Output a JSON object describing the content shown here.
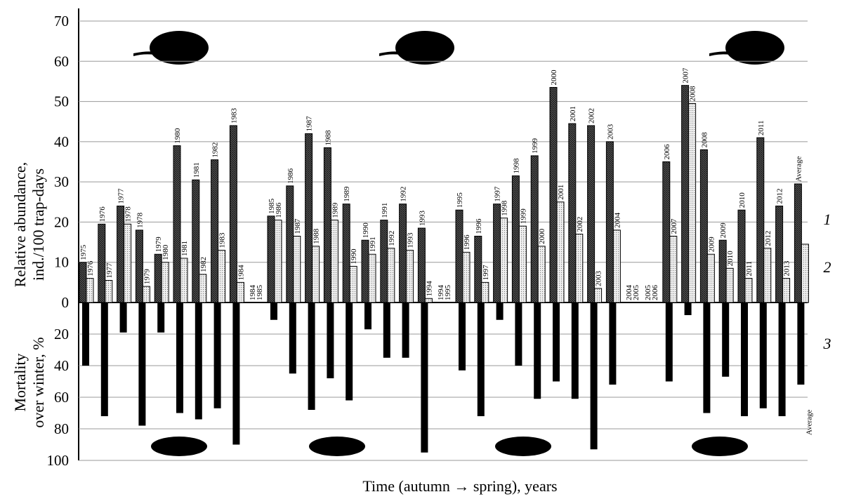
{
  "chart_data": {
    "type": "bar",
    "categories": [
      "1975",
      "1976",
      "1977",
      "1978",
      "1979",
      "1980",
      "1981",
      "1982",
      "1983",
      "1984",
      "1985",
      "1986",
      "1987",
      "1988",
      "1989",
      "1990",
      "1991",
      "1992",
      "1993",
      "1994",
      "1995",
      "1996",
      "1997",
      "1998",
      "1999",
      "2000",
      "2001",
      "2002",
      "2003",
      "2004",
      "2005",
      "2006",
      "2007",
      "2008",
      "2009",
      "2010",
      "2011",
      "2012",
      "Average"
    ],
    "spring_labels": [
      "1976",
      "1977",
      "1978",
      "1979",
      "1980",
      "1981",
      "1982",
      "1983",
      "1984",
      "1985",
      "1986",
      "1987",
      "1988",
      "1989",
      "1990",
      "1991",
      "1992",
      "1993",
      "1994",
      "1995",
      "1996",
      "1997",
      "1998",
      "1999",
      "2000",
      "2001",
      "2002",
      "2003",
      "2004",
      "2005",
      "2006",
      "2007",
      "2008",
      "2009",
      "2010",
      "2011",
      "2012",
      "2013",
      null
    ],
    "series": [
      {
        "name": "1",
        "color": "#3a3a3a",
        "values": [
          10,
          19.5,
          24,
          18,
          12,
          39,
          30.5,
          35.5,
          44,
          0,
          21.5,
          29,
          42,
          38.5,
          24.5,
          15.5,
          20.5,
          24.5,
          18.5,
          0,
          23,
          16.5,
          24.5,
          31.5,
          36.5,
          53.5,
          44.5,
          44,
          40,
          0,
          0,
          35,
          54,
          38,
          15.5,
          23,
          41,
          24,
          29.5
        ]
      },
      {
        "name": "2",
        "color": "#d8d8d8",
        "values": [
          6,
          5.5,
          19.5,
          4,
          10,
          11,
          7,
          13,
          5,
          0,
          20.5,
          16.5,
          14,
          20.5,
          9,
          12,
          13.5,
          13,
          1,
          0,
          12.5,
          5,
          21,
          19,
          14,
          25,
          17,
          3.5,
          18,
          0,
          0,
          16.5,
          49.5,
          12,
          8.5,
          6,
          13.5,
          6,
          14.5
        ]
      },
      {
        "name": "3",
        "color": "#000000",
        "axis": "y2",
        "values": [
          40,
          72,
          19,
          78,
          19,
          70,
          74,
          67,
          90,
          null,
          11,
          45,
          68,
          48,
          62,
          17,
          35,
          35,
          95,
          null,
          43,
          72,
          11,
          40,
          61,
          50,
          61,
          93,
          52,
          null,
          null,
          50,
          8,
          70,
          47,
          72,
          67,
          72,
          52
        ]
      }
    ],
    "ylabel": [
      "Relative abundance,",
      "ind./100 trap-days"
    ],
    "y2label": [
      "Mortality",
      "over winter, %"
    ],
    "xlabel": "Time (autumn → spring), years",
    "ylim": [
      0,
      70
    ],
    "yticks": [
      0,
      10,
      20,
      30,
      40,
      50,
      60,
      70
    ],
    "y2lim": [
      0,
      100
    ],
    "y2ticks": [
      20,
      40,
      60,
      80,
      100
    ],
    "grid": true
  }
}
